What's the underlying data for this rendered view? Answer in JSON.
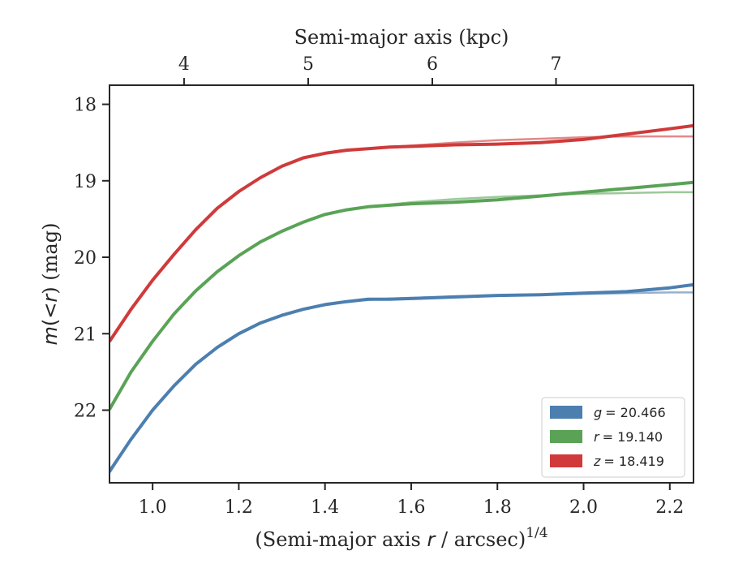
{
  "chart_data": {
    "type": "line",
    "xlabel": "(Semi-major axis r / arcsec)^1/4",
    "xlabel_main": "(Semi-major axis ",
    "xlabel_var": "r",
    "xlabel_tail": " / arcsec)",
    "xlabel_sup": "1/4",
    "ylabel": "m(< r) (mag)",
    "ylabel_var": "m",
    "ylabel_mid": "(<",
    "ylabel_var2": "r",
    "ylabel_tail": ") (mag)",
    "top_xlabel": "Semi-major axis (kpc)",
    "xlim": [
      0.9,
      2.255
    ],
    "ylim": [
      22.95,
      17.75
    ],
    "y_inverted": true,
    "xticks": [
      "1.0",
      "1.2",
      "1.4",
      "1.6",
      "1.8",
      "2.0",
      "2.2"
    ],
    "xtick_values": [
      1.0,
      1.2,
      1.4,
      1.6,
      1.8,
      2.0,
      2.2
    ],
    "yticks": [
      "18",
      "19",
      "20",
      "21",
      "22"
    ],
    "ytick_values": [
      18,
      19,
      20,
      21,
      22
    ],
    "top_xticks": [
      "4",
      "5",
      "6",
      "7"
    ],
    "top_xtick_positions": [
      1.073,
      1.361,
      1.649,
      1.936
    ],
    "legend_position": "lower-right",
    "x": [
      0.9,
      0.95,
      1.0,
      1.05,
      1.1,
      1.15,
      1.2,
      1.25,
      1.3,
      1.35,
      1.4,
      1.45,
      1.5,
      1.55,
      1.6,
      1.7,
      1.8,
      1.9,
      2.0,
      2.1,
      2.2,
      2.255
    ],
    "series": [
      {
        "name": "g",
        "label": "= 20.466",
        "color": "#4c7fb0",
        "values": [
          22.8,
          22.38,
          22.0,
          21.68,
          21.4,
          21.18,
          21.0,
          20.86,
          20.76,
          20.68,
          20.62,
          20.58,
          20.55,
          20.55,
          20.54,
          20.52,
          20.5,
          20.49,
          20.47,
          20.45,
          20.4,
          20.36
        ],
        "model": [
          22.82,
          22.38,
          22.0,
          21.68,
          21.4,
          21.17,
          20.99,
          20.86,
          20.76,
          20.68,
          20.62,
          20.58,
          20.56,
          20.54,
          20.53,
          20.51,
          20.5,
          20.49,
          20.48,
          20.47,
          20.46,
          20.46
        ]
      },
      {
        "name": "r",
        "label": "= 19.140",
        "color": "#5aa356",
        "values": [
          21.99,
          21.5,
          21.1,
          20.74,
          20.44,
          20.19,
          19.98,
          19.8,
          19.66,
          19.54,
          19.44,
          19.38,
          19.34,
          19.32,
          19.3,
          19.28,
          19.25,
          19.2,
          19.15,
          19.1,
          19.05,
          19.02
        ],
        "model": [
          21.99,
          21.5,
          21.1,
          20.74,
          20.44,
          20.19,
          19.98,
          19.8,
          19.66,
          19.54,
          19.44,
          19.38,
          19.34,
          19.31,
          19.28,
          19.24,
          19.21,
          19.19,
          19.17,
          19.16,
          19.15,
          19.15
        ]
      },
      {
        "name": "z",
        "label": "= 18.419",
        "color": "#d03a3a",
        "values": [
          21.1,
          20.68,
          20.3,
          19.96,
          19.64,
          19.36,
          19.14,
          18.96,
          18.81,
          18.7,
          18.64,
          18.6,
          18.58,
          18.56,
          18.55,
          18.53,
          18.52,
          18.5,
          18.46,
          18.39,
          18.32,
          18.28
        ],
        "model": [
          21.1,
          20.68,
          20.3,
          19.96,
          19.64,
          19.36,
          19.14,
          18.96,
          18.81,
          18.7,
          18.64,
          18.6,
          18.58,
          18.56,
          18.54,
          18.5,
          18.47,
          18.45,
          18.43,
          18.42,
          18.42,
          18.42
        ]
      }
    ]
  }
}
